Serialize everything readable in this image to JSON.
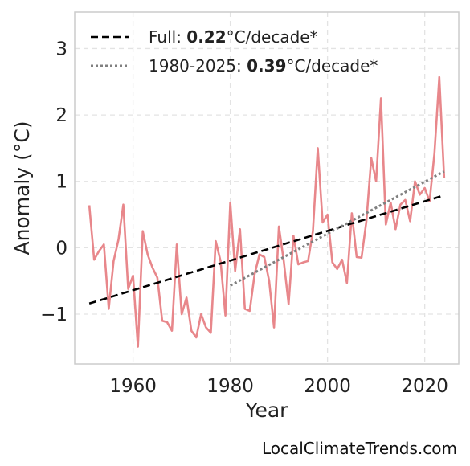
{
  "chart_data": {
    "type": "line",
    "title": "",
    "xlabel": "Year",
    "ylabel": "Anomaly (°C)",
    "xlim": [
      1948,
      2027
    ],
    "ylim": [
      -1.75,
      3.55
    ],
    "x_ticks": [
      1960,
      1980,
      2000,
      2020
    ],
    "x_tick_labels": [
      "1960",
      "1980",
      "2000",
      "2020"
    ],
    "y_ticks": [
      -1,
      0,
      1,
      2,
      3
    ],
    "y_tick_labels": [
      "−1",
      "0",
      "1",
      "2",
      "3"
    ],
    "grid": true,
    "legend_position": "top-left",
    "series": [
      {
        "color": "#e8878b",
        "x": [
          1951,
          1952,
          1953,
          1954,
          1955,
          1956,
          1957,
          1958,
          1959,
          1960,
          1961,
          1962,
          1963,
          1964,
          1965,
          1966,
          1967,
          1968,
          1969,
          1970,
          1971,
          1972,
          1973,
          1974,
          1975,
          1976,
          1977,
          1978,
          1979,
          1980,
          1981,
          1982,
          1983,
          1984,
          1985,
          1986,
          1987,
          1988,
          1989,
          1990,
          1991,
          1992,
          1993,
          1994,
          1995,
          1996,
          1997,
          1998,
          1999,
          2000,
          2001,
          2002,
          2003,
          2004,
          2005,
          2006,
          2007,
          2008,
          2009,
          2010,
          2011,
          2012,
          2013,
          2014,
          2015,
          2016,
          2017,
          2018,
          2019,
          2020,
          2021,
          2022,
          2023,
          2024
        ],
        "y": [
          0.64,
          -0.18,
          -0.05,
          0.05,
          -0.92,
          -0.2,
          0.12,
          0.65,
          -0.62,
          -0.42,
          -1.49,
          0.25,
          -0.1,
          -0.3,
          -0.45,
          -1.1,
          -1.12,
          -1.25,
          0.05,
          -1.0,
          -0.75,
          -1.25,
          -1.35,
          -1.0,
          -1.2,
          -1.28,
          0.1,
          -0.2,
          -1.02,
          0.68,
          -0.35,
          0.28,
          -0.92,
          -0.95,
          -0.4,
          -0.1,
          -0.14,
          -0.5,
          -1.2,
          0.32,
          -0.2,
          -0.85,
          0.18,
          -0.25,
          -0.22,
          -0.2,
          0.25,
          1.5,
          0.38,
          0.5,
          -0.22,
          -0.32,
          -0.18,
          -0.53,
          0.52,
          -0.14,
          -0.15,
          0.4,
          1.35,
          1.0,
          2.25,
          0.35,
          0.68,
          0.28,
          0.65,
          0.72,
          0.4,
          1.0,
          0.8,
          0.9,
          0.7,
          1.42,
          2.57,
          1.05
        ]
      },
      {
        "name": "Full",
        "color": "#000000",
        "style": "dashed",
        "x": [
          1951,
          2024
        ],
        "y": [
          -0.84,
          0.79
        ]
      },
      {
        "name": "1980-2025",
        "color": "#808080",
        "style": "dotted",
        "x": [
          1980,
          2024
        ],
        "y": [
          -0.57,
          1.15
        ]
      }
    ],
    "legend": [
      {
        "name": "Full",
        "prefix": "Full: ",
        "value": "0.22",
        "suffix": "°C/decade*",
        "color": "#000000",
        "style": "dashed"
      },
      {
        "name": "1980-2025",
        "prefix": "1980-2025: ",
        "value": "0.39",
        "suffix": "°C/decade*",
        "color": "#808080",
        "style": "dotted"
      }
    ]
  },
  "source_label": "LocalClimateTrends.com"
}
